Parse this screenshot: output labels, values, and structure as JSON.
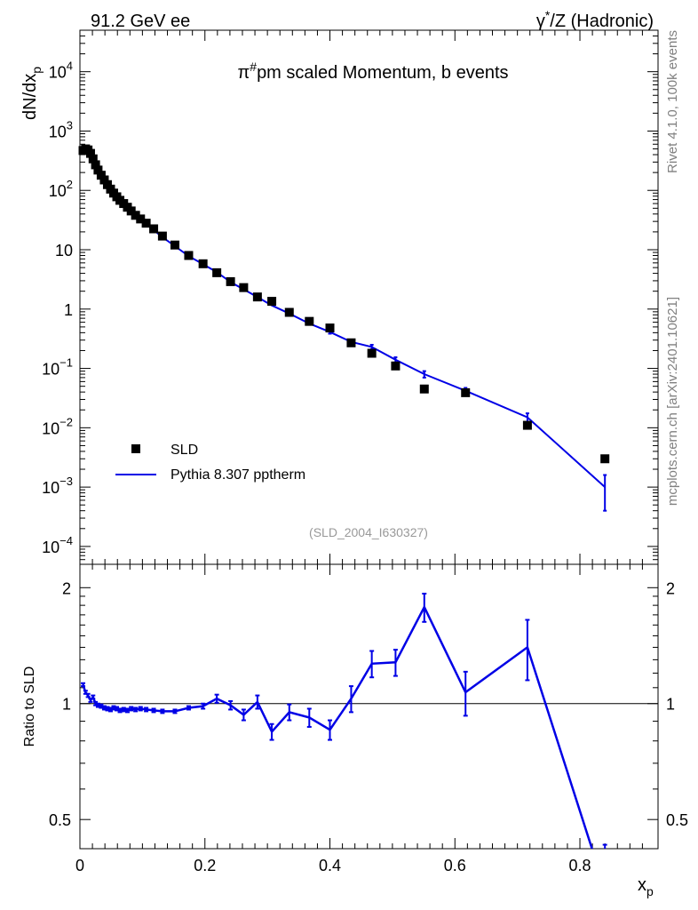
{
  "header": {
    "left": "91.2 GeV ee",
    "right_prefix": "γ",
    "right_sup": "*",
    "right_suffix": "/Z (Hadronic)"
  },
  "title": {
    "prefix": "π",
    "sup": "#",
    "suffix": "pm scaled Momentum, b events"
  },
  "side": {
    "rivet": "Rivet 4.1.0,  100k events",
    "mcplots": "mcplots.cern.ch [arXiv:2401.10621]"
  },
  "analysis_id": "(SLD_2004_I630327)",
  "legend": {
    "data_label": "SLD",
    "mc_label": "Pythia 8.307 pptherm"
  },
  "colors": {
    "mc": "#0000e6",
    "data": "#000000",
    "side_text": "#808080",
    "analysis_text": "#999999"
  },
  "chart_data": {
    "type": "line",
    "title": "π#pm scaled Momentum, b events",
    "xlabel": "x_p",
    "xlabel_main": "x",
    "xlabel_sub": "p",
    "ylabel": "dN/dx_p",
    "ylabel_main": "dN/dx",
    "ylabel_sub": "p",
    "ratio_ylabel": "Ratio to SLD",
    "xlim": [
      0,
      0.925
    ],
    "ylim": [
      5e-05,
      50000
    ],
    "yscale": "log",
    "ratio_ylim": [
      0.42,
      2.3
    ],
    "ratio_yscale": "log",
    "x_ticks": [
      "0",
      "0.2",
      "0.4",
      "0.6",
      "0.8"
    ],
    "y_ticks": [
      {
        "base": "10",
        "exp": "4"
      },
      {
        "base": "10",
        "exp": "3"
      },
      {
        "base": "10",
        "exp": "2"
      },
      {
        "base": "10",
        "exp": ""
      },
      {
        "base": "1",
        "exp": ""
      },
      {
        "base": "10",
        "exp": "−1"
      },
      {
        "base": "10",
        "exp": "−2"
      },
      {
        "base": "10",
        "exp": "−3"
      },
      {
        "base": "10",
        "exp": "−4"
      }
    ],
    "ratio_ticks": [
      "2",
      "1",
      "0.5"
    ],
    "ratio_ticks_right": [
      "2",
      "1",
      "0.5"
    ],
    "data_x": [
      0.005,
      0.009,
      0.013,
      0.017,
      0.021,
      0.025,
      0.029,
      0.034,
      0.039,
      0.044,
      0.049,
      0.054,
      0.059,
      0.064,
      0.07,
      0.076,
      0.082,
      0.089,
      0.097,
      0.106,
      0.118,
      0.132,
      0.152,
      0.174,
      0.197,
      0.219,
      0.241,
      0.262,
      0.284,
      0.307,
      0.335,
      0.367,
      0.4,
      0.434,
      0.467,
      0.505,
      0.551,
      0.617,
      0.716,
      0.84
    ],
    "data_y": [
      470,
      500,
      480,
      420,
      340,
      270,
      220,
      180,
      150,
      125,
      105,
      90,
      78,
      68,
      60,
      52,
      45,
      38,
      33,
      28,
      22.5,
      17,
      12,
      8,
      5.8,
      4.1,
      2.9,
      2.3,
      1.6,
      1.35,
      0.88,
      0.62,
      0.48,
      0.27,
      0.18,
      0.11,
      0.045,
      0.039,
      0.011,
      0.003
    ],
    "mc_y": [
      520,
      520,
      490,
      430,
      335,
      265,
      212,
      173,
      145,
      120,
      100,
      85,
      75,
      66,
      58,
      49,
      43,
      37,
      32,
      27,
      21.5,
      16.3,
      11.5,
      7.8,
      5.7,
      4.2,
      2.85,
      2.15,
      1.6,
      1.15,
      0.84,
      0.57,
      0.41,
      0.28,
      0.23,
      0.14,
      0.08,
      0.042,
      0.015,
      0.001
    ],
    "mc_err": [
      0,
      0,
      0,
      0,
      0,
      0,
      0,
      0,
      0,
      0,
      0,
      0,
      0,
      0,
      0,
      0,
      0,
      0,
      0,
      0,
      0,
      0,
      0,
      0,
      0,
      0,
      0,
      0,
      0,
      0,
      0.03,
      0.025,
      0.025,
      0.02,
      0.02,
      0.014,
      0.01,
      0.005,
      0.0025,
      0.0006
    ],
    "ratio": [
      1.12,
      1.07,
      1.05,
      1.02,
      1.04,
      1.0,
      0.99,
      0.985,
      0.975,
      0.97,
      0.965,
      0.975,
      0.97,
      0.96,
      0.965,
      0.96,
      0.97,
      0.965,
      0.97,
      0.965,
      0.96,
      0.955,
      0.955,
      0.975,
      0.985,
      1.03,
      0.99,
      0.935,
      1.01,
      0.845,
      0.95,
      0.92,
      0.855,
      1.03,
      1.27,
      1.28,
      1.78,
      1.07,
      1.4,
      0.33
    ],
    "ratio_err": [
      0.01,
      0.01,
      0.01,
      0.01,
      0.01,
      0.01,
      0.01,
      0.01,
      0.01,
      0.01,
      0.01,
      0.01,
      0.01,
      0.01,
      0.01,
      0.01,
      0.01,
      0.01,
      0.01,
      0.01,
      0.01,
      0.01,
      0.01,
      0.01,
      0.015,
      0.025,
      0.025,
      0.03,
      0.04,
      0.04,
      0.045,
      0.05,
      0.05,
      0.08,
      0.1,
      0.1,
      0.15,
      0.14,
      0.25,
      0.1
    ]
  }
}
